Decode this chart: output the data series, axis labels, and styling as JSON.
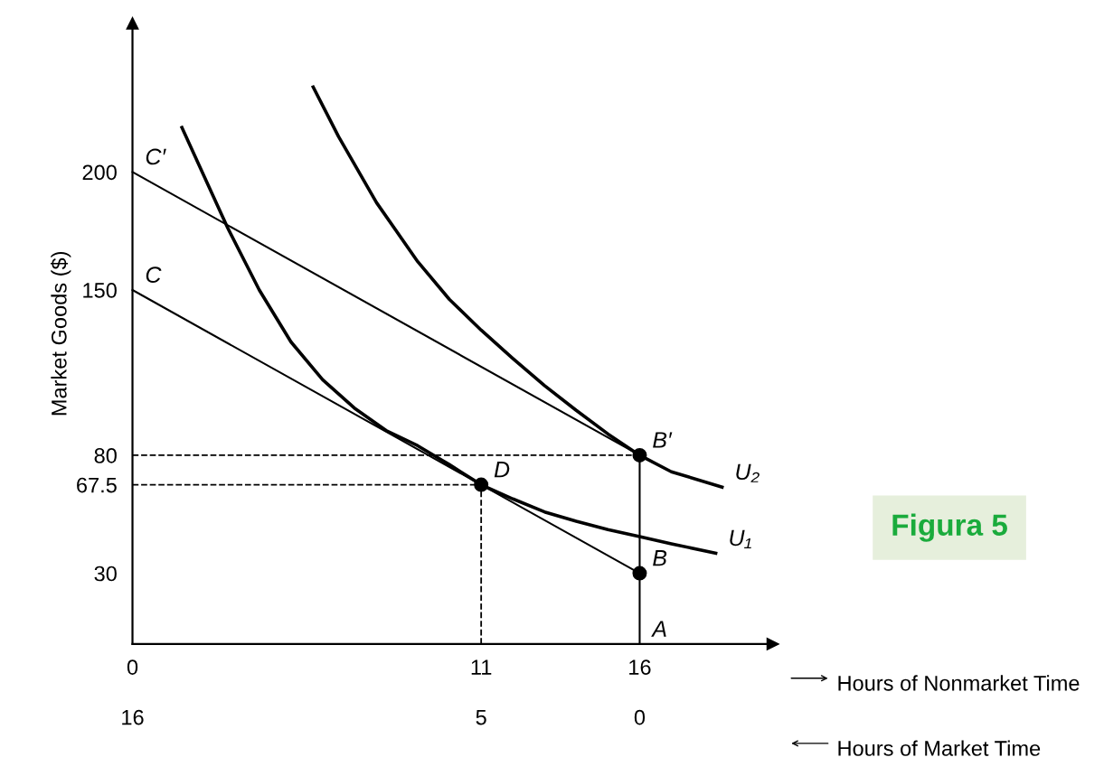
{
  "chart_data": {
    "type": "line",
    "xlabel": "Hours of Nonmarket Time",
    "ylabel": "Market Goods ($)",
    "x2label": "Hours of Market Time",
    "xlim": [
      0,
      20.2
    ],
    "xticks": [
      0,
      11,
      16
    ],
    "x2lim": [
      16,
      -4.2
    ],
    "x2ticks": [
      16,
      5,
      0
    ],
    "ylim": [
      0,
      263
    ],
    "yticks": [
      30,
      67.5,
      80,
      150,
      200
    ],
    "grid": false,
    "series": [
      {
        "color": "#000000",
        "x": [
          0,
          16
        ],
        "values": [
          150,
          30
        ]
      },
      {
        "color": "#000000",
        "x": [
          0,
          16
        ],
        "values": [
          200,
          80
        ]
      },
      {
        "color": "#000000",
        "x": [
          1.56,
          2.2,
          3.0,
          4.0,
          5.0,
          6.0,
          7.0,
          8.0,
          9.0,
          10.0,
          11,
          12,
          13,
          14,
          15,
          16,
          17,
          18.4
        ],
        "values": [
          218.8,
          200,
          176.4,
          150,
          128,
          112,
          100,
          90.5,
          84,
          76,
          67.5,
          61.5,
          56,
          52,
          48.5,
          45.5,
          42.5,
          38.5
        ]
      },
      {
        "color": "#000000",
        "x": [
          5.7,
          6.5,
          7.7,
          9,
          10,
          11,
          12,
          13,
          14,
          15,
          16,
          17,
          18.6
        ],
        "values": [
          236,
          215,
          187,
          162,
          146,
          133,
          121,
          109.5,
          99,
          89,
          80,
          73,
          66.5
        ]
      },
      {
        "color": "#000000",
        "x": [
          16,
          16
        ],
        "values": [
          0,
          80
        ]
      },
      {
        "color": "#000000",
        "x": [
          0,
          16
        ],
        "values": [
          80,
          80
        ],
        "line_style": "dashed"
      },
      {
        "color": "#000000",
        "x": [
          0,
          11
        ],
        "values": [
          67.5,
          67.5
        ],
        "line_style": "dashed"
      },
      {
        "color": "#000000",
        "x": [
          11,
          11
        ],
        "values": [
          0,
          67.5
        ],
        "line_style": "dashed"
      },
      {
        "type": "scatter",
        "color": "#000000",
        "x": [
          16,
          11,
          16
        ],
        "values": [
          80,
          67.5,
          30
        ],
        "marker": "circle"
      }
    ],
    "annotations": [
      {
        "text": "C′",
        "x": 0,
        "y": 200
      },
      {
        "text": "C",
        "x": 0,
        "y": 150
      },
      {
        "text": "B′",
        "x": 16,
        "y": 80
      },
      {
        "text": "D",
        "x": 11,
        "y": 67.5
      },
      {
        "text": "B",
        "x": 16,
        "y": 30
      },
      {
        "text": "A",
        "x": 16,
        "y": 0
      },
      {
        "text": "U₂",
        "x": 18.6,
        "y": 66.5
      },
      {
        "text": "U₁",
        "x": 18.4,
        "y": 38.5
      },
      "Figura 5"
    ]
  }
}
